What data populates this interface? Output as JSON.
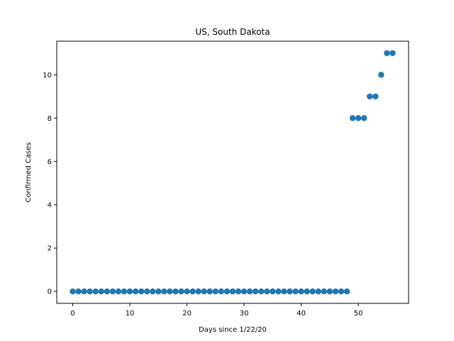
{
  "chart_data": {
    "type": "scatter",
    "title": "US, South Dakota",
    "xlabel": "Days since 1/22/20",
    "ylabel": "Confirmed Cases",
    "xlim": [
      -2.8,
      58.8
    ],
    "ylim": [
      -0.55,
      11.55
    ],
    "xticks": [
      0,
      10,
      20,
      30,
      40,
      50
    ],
    "yticks": [
      0,
      2,
      4,
      6,
      8,
      10
    ],
    "grid": false,
    "color": "#1f77b4",
    "series": [
      {
        "x": [
          0,
          1,
          2,
          3,
          4,
          5,
          6,
          7,
          8,
          9,
          10,
          11,
          12,
          13,
          14,
          15,
          16,
          17,
          18,
          19,
          20,
          21,
          22,
          23,
          24,
          25,
          26,
          27,
          28,
          29,
          30,
          31,
          32,
          33,
          34,
          35,
          36,
          37,
          38,
          39,
          40,
          41,
          42,
          43,
          44,
          45,
          46,
          47,
          48,
          49,
          50,
          51,
          52,
          53,
          54,
          55,
          56
        ],
        "y": [
          0,
          0,
          0,
          0,
          0,
          0,
          0,
          0,
          0,
          0,
          0,
          0,
          0,
          0,
          0,
          0,
          0,
          0,
          0,
          0,
          0,
          0,
          0,
          0,
          0,
          0,
          0,
          0,
          0,
          0,
          0,
          0,
          0,
          0,
          0,
          0,
          0,
          0,
          0,
          0,
          0,
          0,
          0,
          0,
          0,
          0,
          0,
          0,
          0,
          8,
          8,
          8,
          9,
          9,
          10,
          11,
          11
        ]
      }
    ]
  }
}
